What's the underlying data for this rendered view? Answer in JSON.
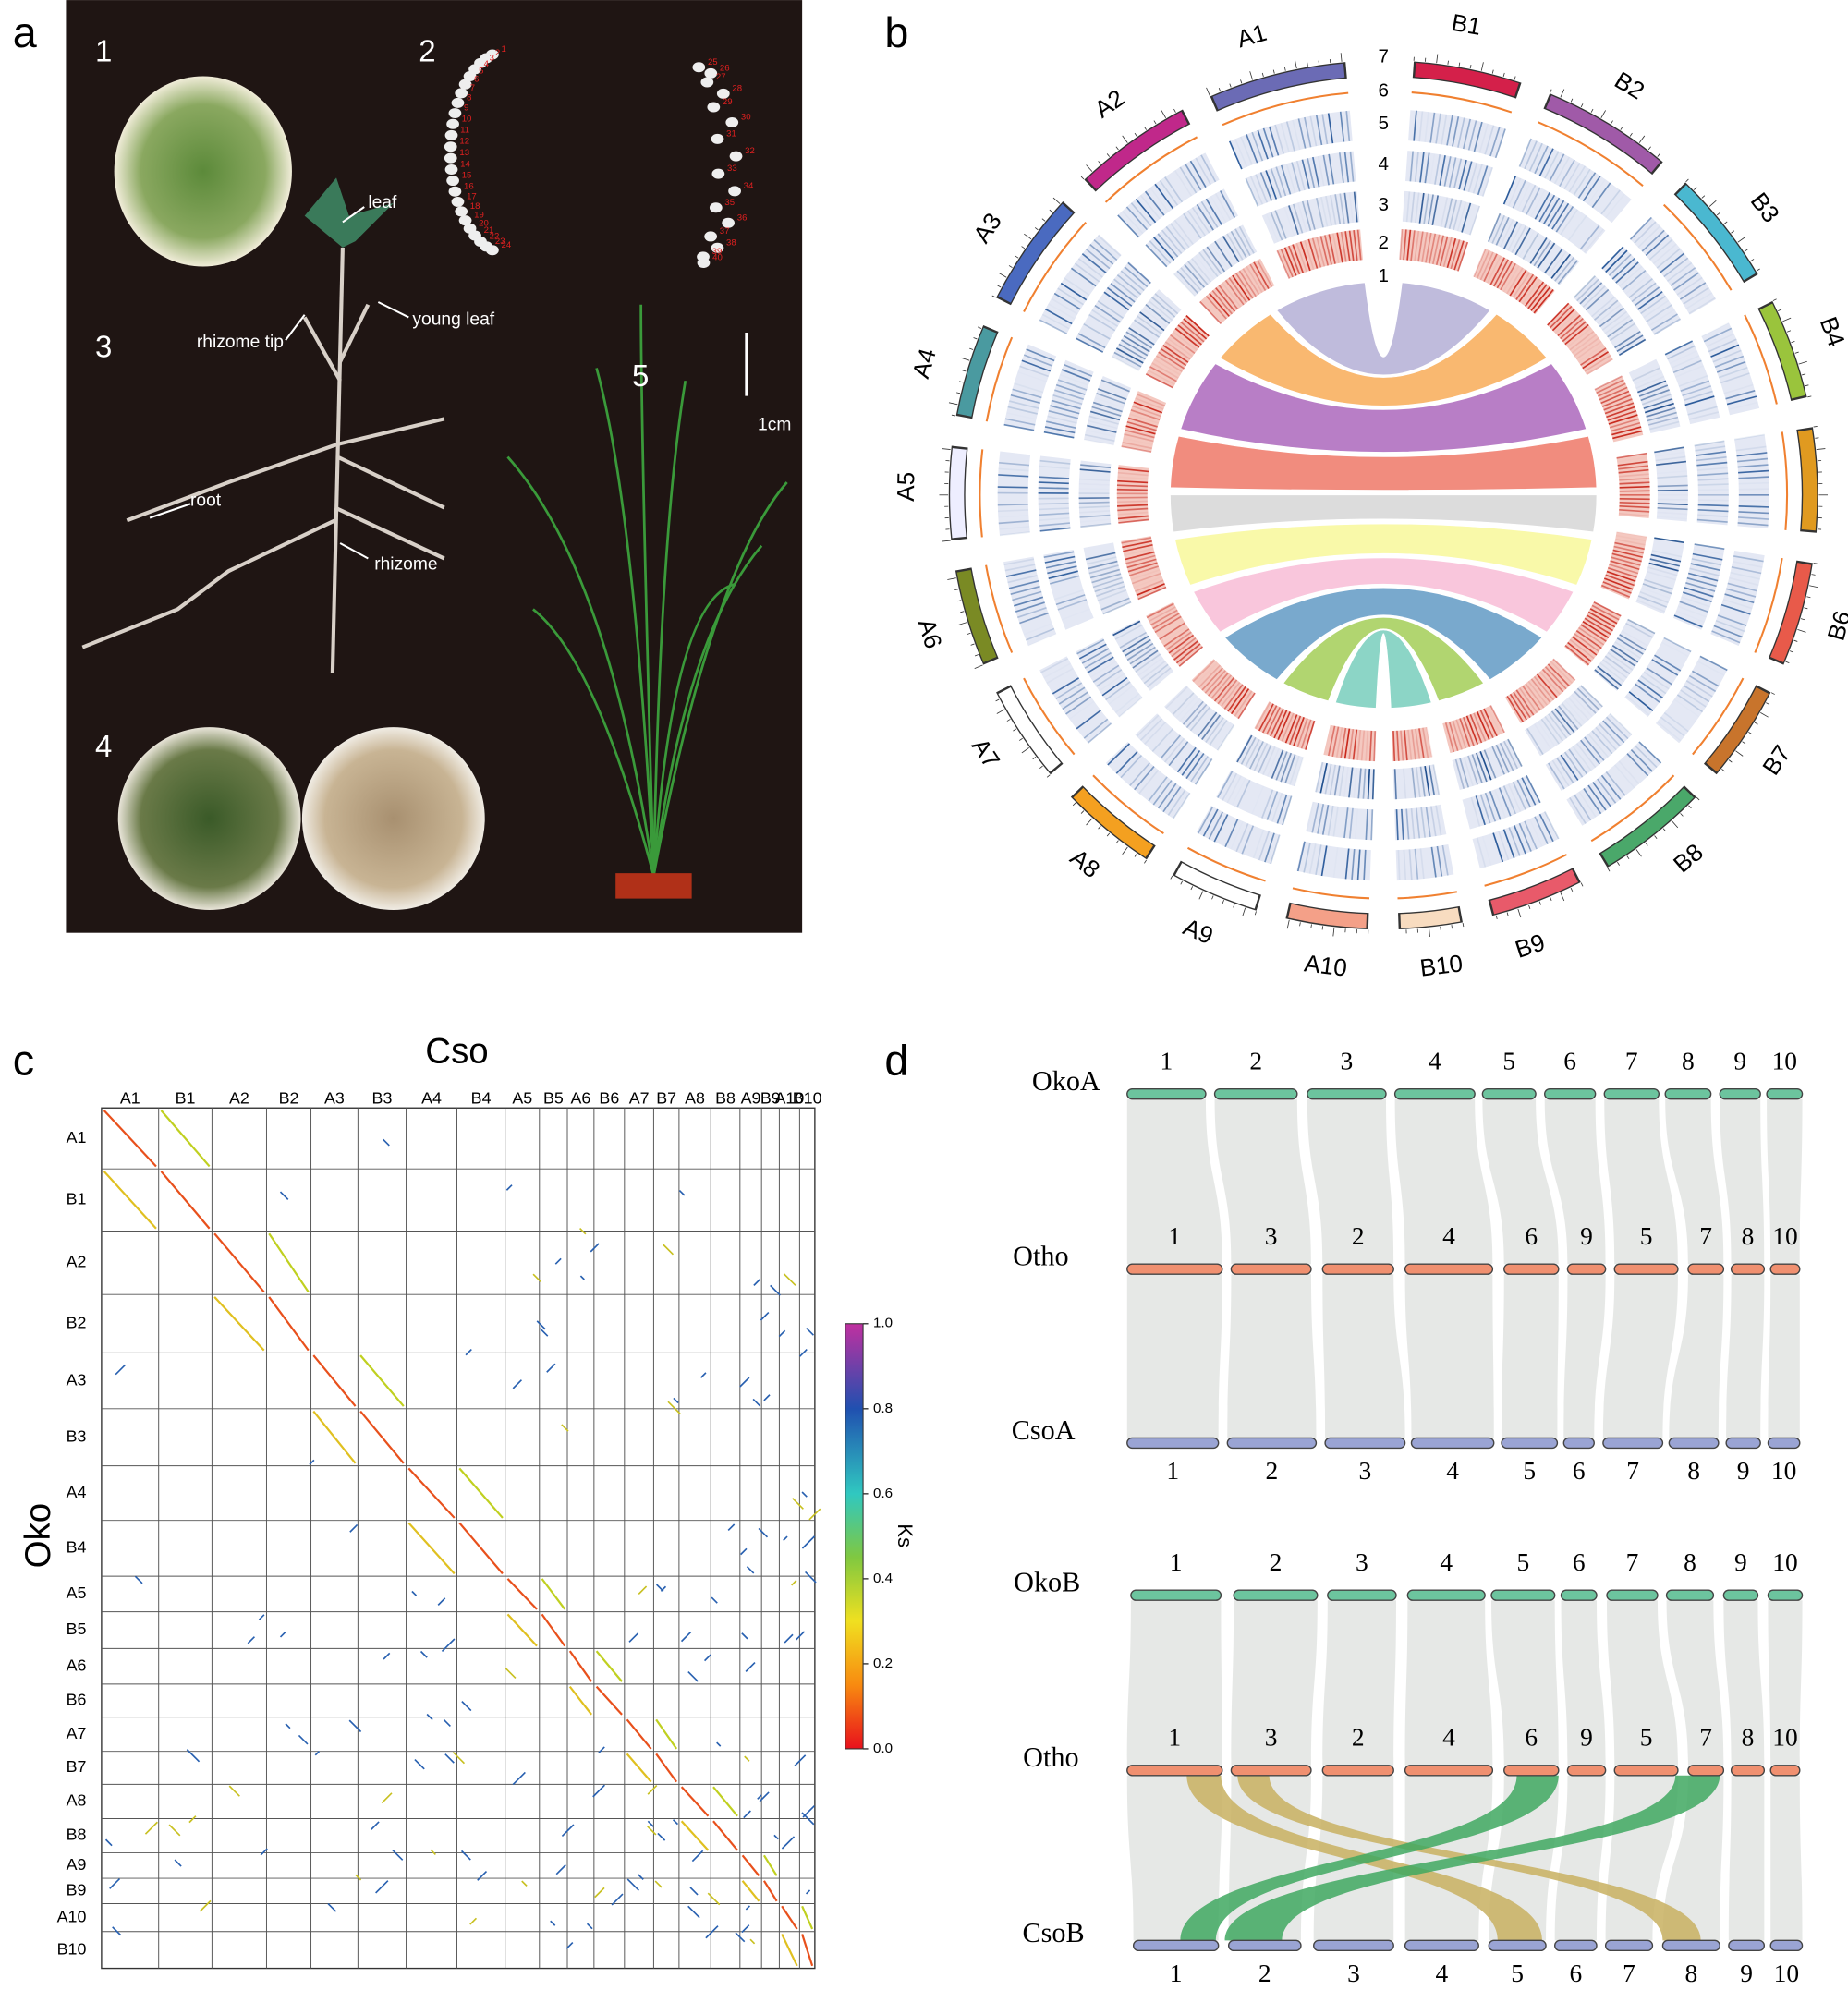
{
  "panel_labels": [
    "a",
    "b",
    "c",
    "d"
  ],
  "photo": {
    "sections": [
      "1",
      "2",
      "3",
      "4",
      "5"
    ],
    "annotations": [
      "leaf",
      "young leaf",
      "rhizome tip",
      "root",
      "rhizome"
    ],
    "scale_bar": "1cm",
    "spread_numbers": [
      "1",
      "2",
      "3",
      "4",
      "5",
      "6",
      "7",
      "8",
      "9",
      "10",
      "11",
      "12",
      "13",
      "14",
      "15",
      "16",
      "17",
      "18",
      "19",
      "20",
      "21",
      "22",
      "23",
      "24",
      "25",
      "26",
      "27",
      "28",
      "29",
      "30",
      "31",
      "32",
      "33",
      "34",
      "35",
      "36",
      "37",
      "38",
      "39",
      "40"
    ]
  },
  "circos": {
    "chromosomes": [
      "B1",
      "B2",
      "B3",
      "B4",
      "B5",
      "B6",
      "B7",
      "B8",
      "B9",
      "B10",
      "A10",
      "A9",
      "A8",
      "A7",
      "A6",
      "A5",
      "A4",
      "A3",
      "A2",
      "A1"
    ],
    "colors": [
      "#d4204a",
      "#a05aa8",
      "#4ab8d0",
      "#9ac43c",
      "#e09a20",
      "#e85a4a",
      "#c8742c",
      "#4aa86a",
      "#e85a6a",
      "#f8dcc0",
      "#f4a088",
      "#ffffff",
      "#f4a020",
      "#ffffff",
      "#7a8a24",
      "#eeeeff",
      "#4a9aa0",
      "#4a6ac0",
      "#c0288a",
      "#6b6bb5"
    ],
    "track_numbers": [
      "7",
      "6",
      "5",
      "4",
      "3",
      "2",
      "1"
    ],
    "link_colors": [
      "#b8b4d8",
      "#f8b060",
      "#b070c0",
      "#f08070",
      "#d8d8d8",
      "#f8f8a0",
      "#f8c0d8",
      "#6aa0c8",
      "#a8d060",
      "#80d0c0"
    ]
  },
  "dotplot": {
    "x_title": "Cso",
    "y_title": "Oko",
    "columns": [
      "A1",
      "B1",
      "A2",
      "B2",
      "A3",
      "B3",
      "A4",
      "B4",
      "A5",
      "B5",
      "A6",
      "B6",
      "A7",
      "B7",
      "A8",
      "B8",
      "A9",
      "B9",
      "A10",
      "B10"
    ],
    "rows": [
      "A1",
      "B1",
      "A2",
      "B2",
      "A3",
      "B3",
      "A4",
      "B4",
      "A5",
      "B5",
      "A6",
      "B6",
      "A7",
      "B7",
      "A8",
      "B8",
      "A9",
      "B9",
      "A10",
      "B10"
    ],
    "colorbar_title": "Ks",
    "colorbar_ticks": [
      "0.0",
      "0.2",
      "0.4",
      "0.6",
      "0.8",
      "1.0"
    ]
  },
  "synteny": {
    "rows": [
      {
        "name": "OkoA",
        "numbers": [
          "1",
          "2",
          "3",
          "4",
          "5",
          "6",
          "7",
          "8",
          "9",
          "10"
        ]
      },
      {
        "name": "Otho",
        "numbers": [
          "1",
          "3",
          "2",
          "4",
          "6",
          "9",
          "5",
          "7",
          "8",
          "10"
        ]
      },
      {
        "name": "CsoA",
        "numbers": [
          "1",
          "2",
          "3",
          "4",
          "5",
          "6",
          "7",
          "8",
          "9",
          "10"
        ]
      },
      {
        "name": "OkoB",
        "numbers": [
          "1",
          "2",
          "3",
          "4",
          "5",
          "6",
          "7",
          "8",
          "9",
          "10"
        ]
      },
      {
        "name": "Otho",
        "numbers": [
          "1",
          "3",
          "2",
          "4",
          "6",
          "9",
          "5",
          "7",
          "8",
          "10"
        ]
      },
      {
        "name": "CsoB",
        "numbers": [
          "1",
          "2",
          "3",
          "4",
          "5",
          "6",
          "7",
          "8",
          "9",
          "10"
        ]
      }
    ]
  }
}
